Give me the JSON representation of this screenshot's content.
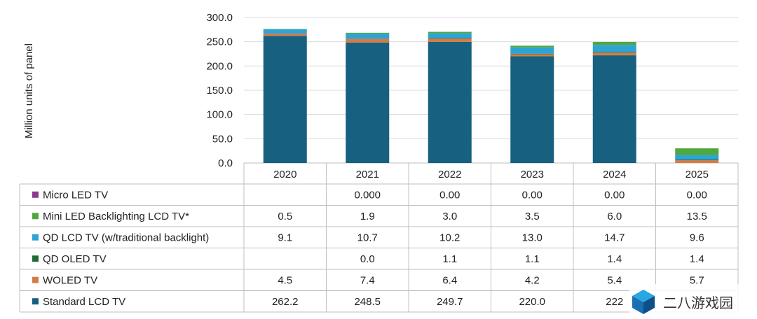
{
  "chart_data": {
    "type": "bar",
    "stacked": true,
    "ylabel": "Million units of panel",
    "ylim": [
      0,
      300
    ],
    "yticks": [
      "0.0",
      "50.0",
      "100.0",
      "150.0",
      "200.0",
      "250.0",
      "300.0"
    ],
    "ytick_values": [
      0,
      50,
      100,
      150,
      200,
      250,
      300
    ],
    "grid": true,
    "categories": [
      "2020",
      "2021",
      "2022",
      "2023",
      "2024",
      "2025"
    ],
    "series": [
      {
        "name": "Micro LED TV",
        "color": "#8e3a8e",
        "values": [
          null,
          0.0,
          0.0,
          0.0,
          0.0,
          0.0
        ],
        "labels": [
          "",
          "0.000",
          "0.00",
          "0.00",
          "0.00",
          "0.00"
        ]
      },
      {
        "name": "Mini LED Backlighting LCD TV*",
        "color": "#4fa83d",
        "values": [
          0.5,
          1.9,
          3.0,
          3.5,
          6.0,
          13.5
        ],
        "labels": [
          "0.5",
          "1.9",
          "3.0",
          "3.5",
          "6.0",
          "13.5"
        ]
      },
      {
        "name": "QD LCD TV (w/traditional backlight)",
        "color": "#2ea3d5",
        "values": [
          9.1,
          10.7,
          10.2,
          13.0,
          14.7,
          9.6
        ],
        "labels": [
          "9.1",
          "10.7",
          "10.2",
          "13.0",
          "14.7",
          "9.6"
        ]
      },
      {
        "name": "QD OLED TV",
        "color": "#1f6b35",
        "values": [
          null,
          0.0,
          1.1,
          1.1,
          1.4,
          1.4
        ],
        "labels": [
          "",
          "0.0",
          "1.1",
          "1.1",
          "1.4",
          "1.4"
        ]
      },
      {
        "name": "WOLED TV",
        "color": "#d67b45",
        "values": [
          4.5,
          7.4,
          6.4,
          4.2,
          5.4,
          5.7
        ],
        "labels": [
          "4.5",
          "7.4",
          "6.4",
          "4.2",
          "5.4",
          "5.7"
        ]
      },
      {
        "name": "Standard LCD TV",
        "color": "#17607f",
        "values": [
          262.2,
          248.5,
          249.7,
          220.0,
          222,
          null
        ],
        "labels": [
          "262.2",
          "248.5",
          "249.7",
          "220.0",
          "222",
          ""
        ]
      }
    ]
  },
  "watermark": {
    "text": "二八游戏园",
    "icon": "cube-logo-icon"
  }
}
